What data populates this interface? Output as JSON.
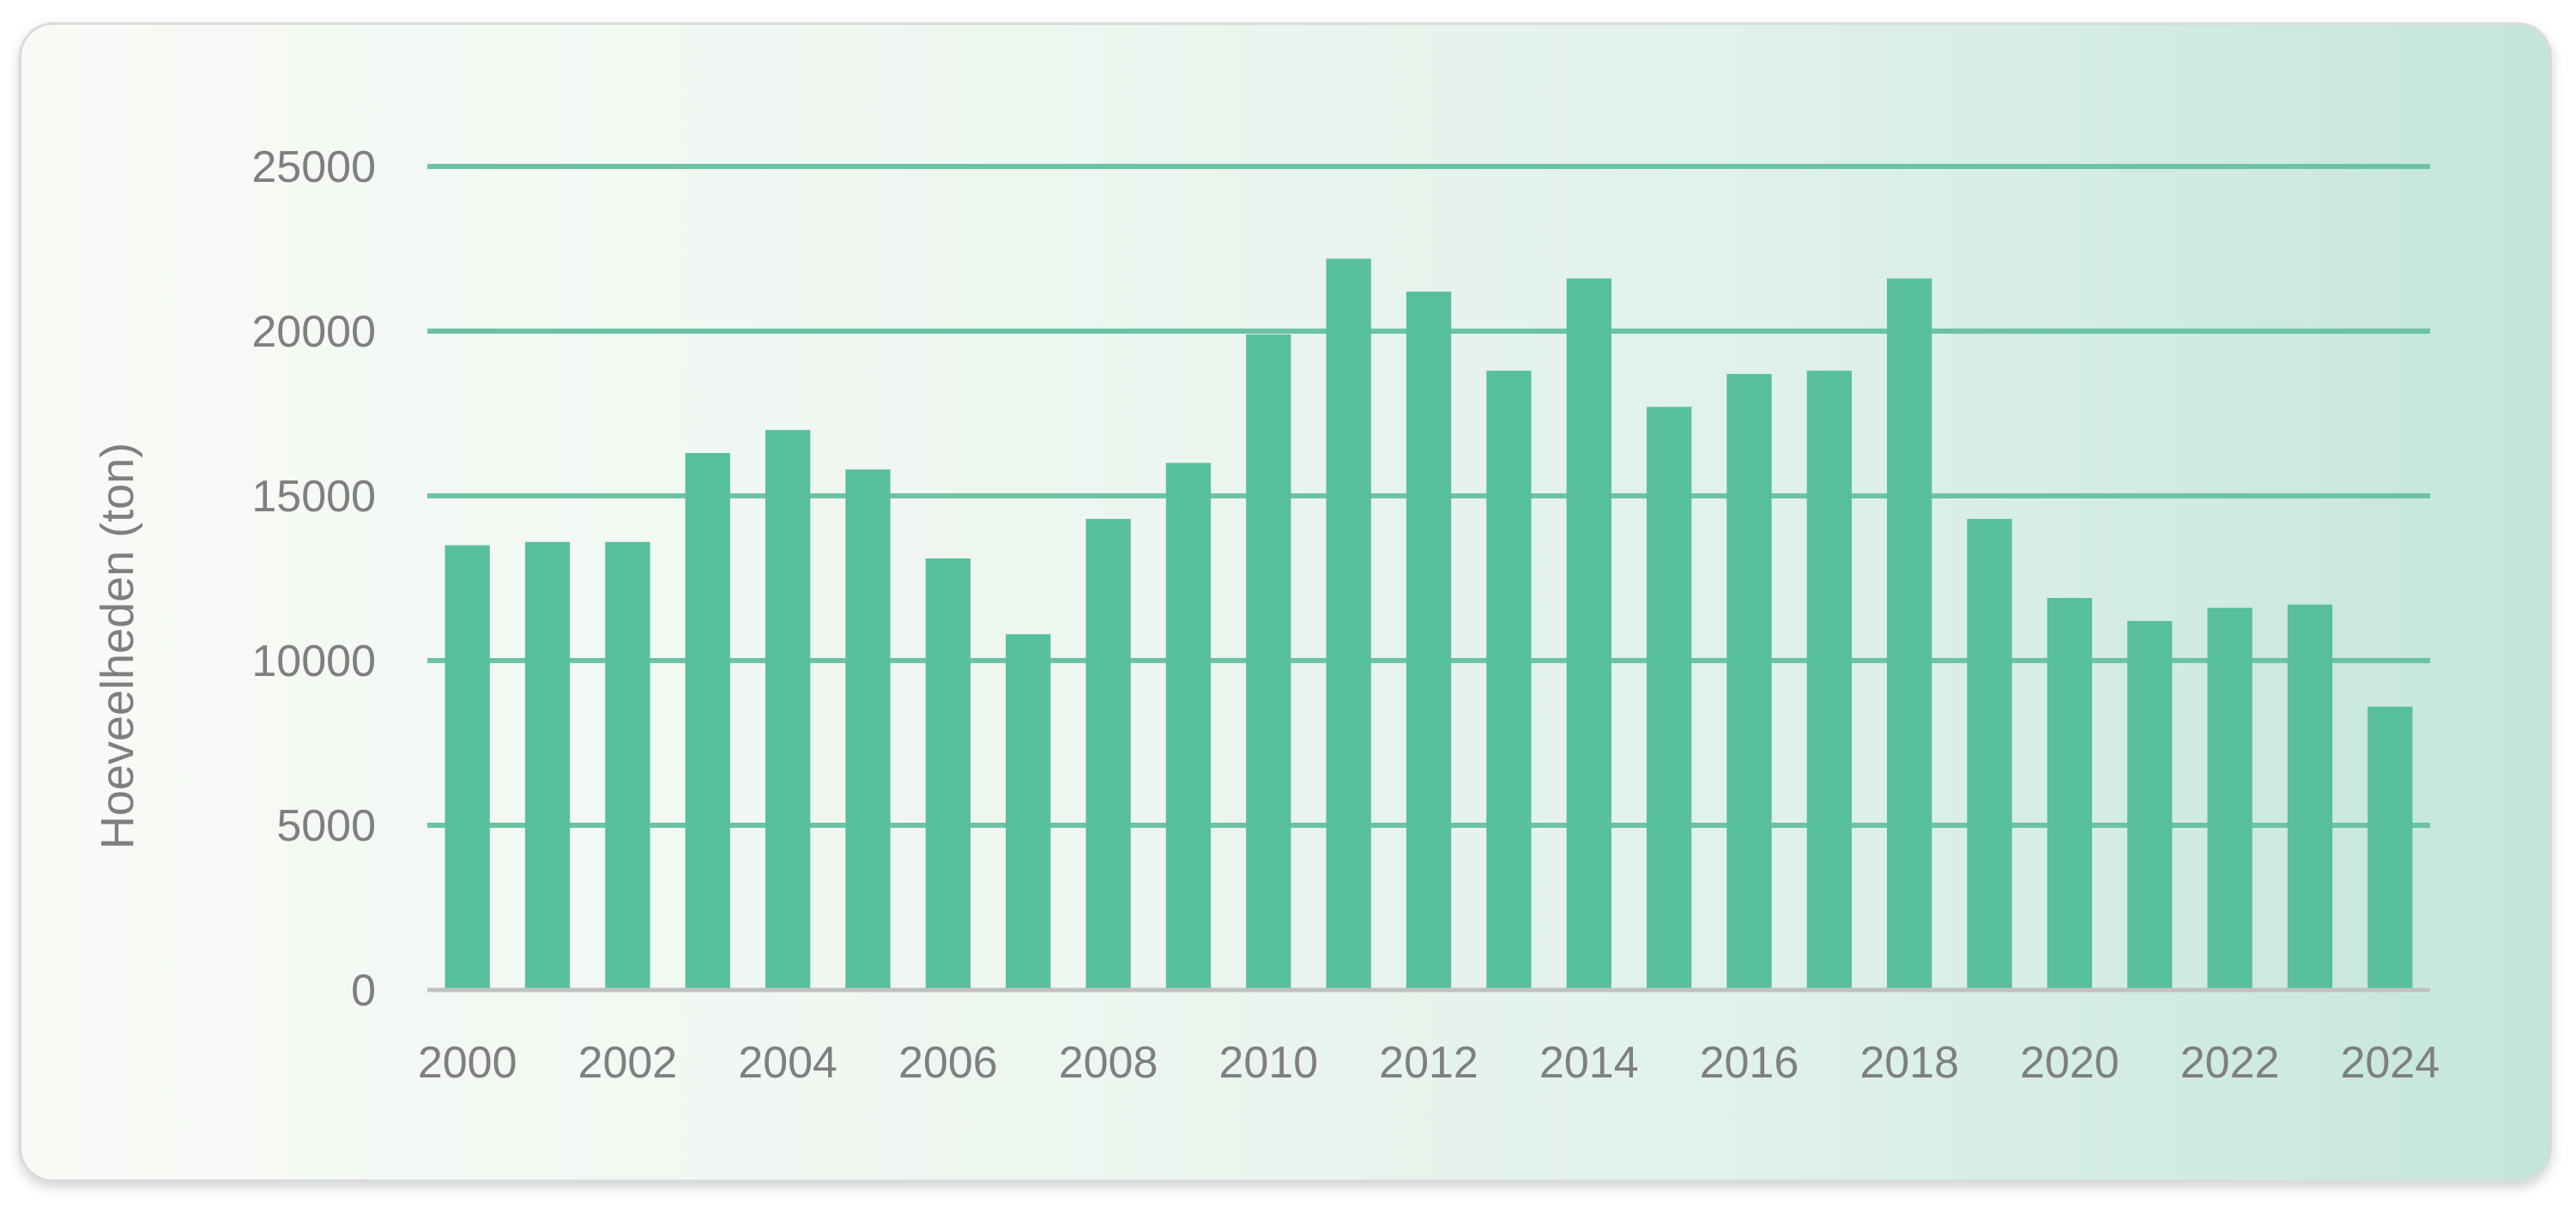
{
  "chart_data": {
    "type": "bar",
    "title": "",
    "xlabel": "",
    "ylabel": "Hoeveelheden (ton)",
    "ylim": [
      0,
      25000
    ],
    "yticks": [
      "0",
      "5000",
      "10000",
      "15000",
      "20000",
      "25000"
    ],
    "grid": true,
    "legend": "none",
    "bar_color": "#58bf9d",
    "grid_color": "#6cc3a4",
    "baseline_color": "#c0c0c0",
    "categories": [
      "2000",
      "2001",
      "2002",
      "2003",
      "2004",
      "2005",
      "2006",
      "2007",
      "2008",
      "2009",
      "2010",
      "2011",
      "2012",
      "2013",
      "2014",
      "2015",
      "2016",
      "2017",
      "2018",
      "2019",
      "2020",
      "2021",
      "2022",
      "2023",
      "2024"
    ],
    "values": [
      13500,
      13600,
      13600,
      16300,
      17000,
      15800,
      13100,
      10800,
      14300,
      16000,
      19900,
      22200,
      21200,
      18800,
      21600,
      17700,
      18700,
      18800,
      21600,
      14300,
      11900,
      11200,
      11600,
      11700,
      8600
    ],
    "xtick_labels": [
      "2000",
      "2002",
      "2004",
      "2006",
      "2008",
      "2010",
      "2012",
      "2014",
      "2016",
      "2018",
      "2020",
      "2022",
      "2024"
    ]
  }
}
